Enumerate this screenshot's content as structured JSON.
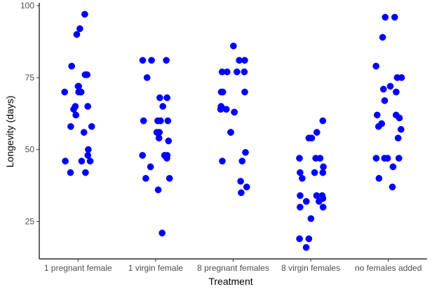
{
  "chart_data": {
    "type": "scatter",
    "title": "",
    "xlabel": "Treatment",
    "ylabel": "Longevity (days)",
    "categories": [
      "1 pregnant female",
      "1 virgin female",
      "8 pregnant females",
      "8 virgin females",
      "no females added"
    ],
    "yticks": [
      25,
      50,
      75,
      100
    ],
    "ylim": [
      12,
      101
    ],
    "grid": false,
    "legend": "none",
    "point_color": "#0000FF",
    "series": [
      {
        "category": "1 pregnant female",
        "values": [
          97,
          92,
          90,
          79,
          76,
          76,
          72,
          72,
          70,
          70,
          70,
          70,
          65,
          65,
          64,
          62,
          58,
          58,
          56,
          50,
          48,
          46,
          46,
          46,
          42,
          42
        ]
      },
      {
        "category": "1 virgin female",
        "values": [
          81,
          81,
          81,
          75,
          68,
          68,
          65,
          60,
          60,
          60,
          60,
          56,
          56,
          54,
          53,
          48,
          48,
          48,
          47,
          44,
          40,
          40,
          36,
          21
        ]
      },
      {
        "category": "8 pregnant females",
        "values": [
          86,
          81,
          81,
          77,
          77,
          77,
          77,
          70,
          70,
          70,
          65,
          64,
          64,
          63,
          63,
          56,
          56,
          49,
          46,
          46,
          39,
          37,
          35
        ]
      },
      {
        "category": "8 virgin females",
        "values": [
          60,
          56,
          54,
          54,
          47,
          47,
          47,
          44,
          42,
          42,
          42,
          40,
          34,
          34,
          34,
          33,
          32,
          32,
          30,
          30,
          26,
          19,
          19,
          16
        ]
      },
      {
        "category": "no females added",
        "values": [
          96,
          96,
          89,
          79,
          75,
          75,
          72,
          71,
          70,
          67,
          62,
          62,
          61,
          59,
          58,
          57,
          54,
          47,
          47,
          47,
          47,
          44,
          40,
          37
        ]
      }
    ]
  }
}
